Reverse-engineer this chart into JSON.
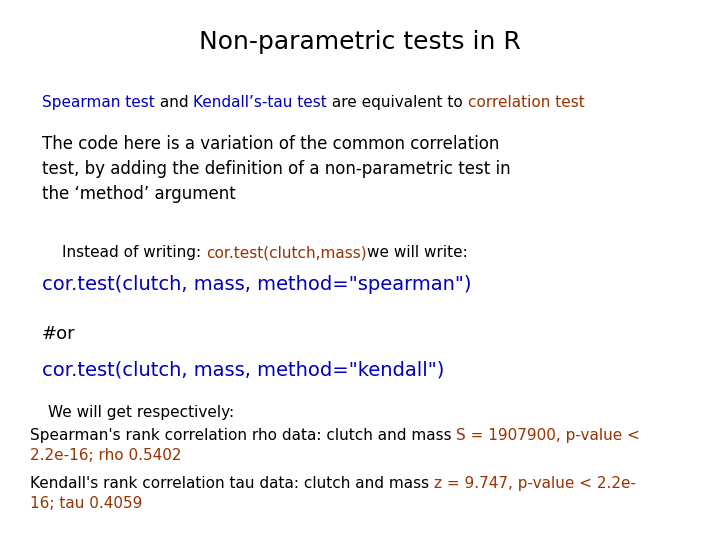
{
  "title": "Non-parametric tests in R",
  "title_fontsize": 18,
  "title_color": "#000000",
  "background_color": "#ffffff",
  "blue": "#0000bb",
  "darkred": "#993300",
  "black": "#000000",
  "font_normal": "DejaVu Sans",
  "font_mono": "DejaVu Sans Mono"
}
